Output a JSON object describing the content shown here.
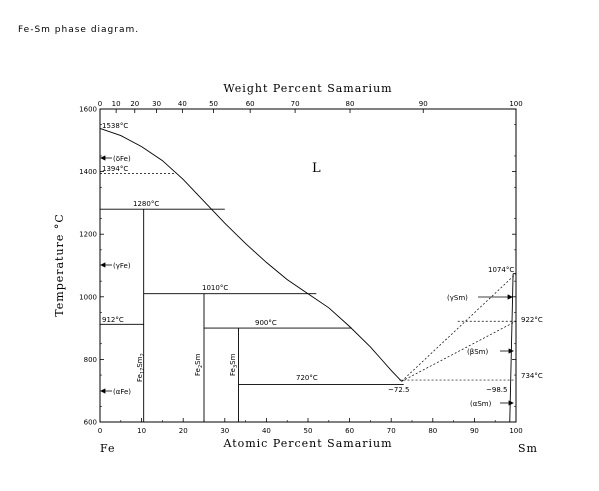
{
  "caption": "Fe-Sm phase diagram.",
  "chart_data": {
    "type": "phase-diagram",
    "x_bottom": {
      "label": "Atomic Percent Samarium",
      "ticks": [
        0,
        10,
        20,
        30,
        40,
        50,
        60,
        70,
        80,
        90,
        100
      ],
      "range": [
        0,
        100
      ]
    },
    "x_top": {
      "label": "Weight Percent Samarium",
      "ticks": [
        0,
        10,
        20,
        30,
        40,
        50,
        60,
        70,
        80,
        90,
        100
      ]
    },
    "y": {
      "label": "Temperature °C",
      "ticks": [
        600,
        800,
        1000,
        1200,
        1400,
        1600
      ],
      "range": [
        600,
        1600
      ]
    },
    "top_ticks_at": [
      0,
      3.88,
      8.36,
      13.6,
      19.8,
      27.3,
      36.1,
      46.9,
      60.1,
      77.7,
      100
    ],
    "element_left": "Fe",
    "element_right": "Sm",
    "phase_L": "L",
    "liquidus": [
      [
        0,
        1538
      ],
      [
        5,
        1515
      ],
      [
        10,
        1480
      ],
      [
        15,
        1435
      ],
      [
        20,
        1375
      ],
      [
        25,
        1305
      ],
      [
        30,
        1235
      ],
      [
        35,
        1170
      ],
      [
        40,
        1110
      ],
      [
        45,
        1055
      ],
      [
        50,
        1010
      ],
      [
        55,
        965
      ],
      [
        60,
        905
      ],
      [
        65,
        840
      ],
      [
        70,
        765
      ],
      [
        72.5,
        730
      ]
    ],
    "horizontals": [
      {
        "x": [
          0,
          30
        ],
        "y": 1280
      },
      {
        "x": [
          10.5,
          52
        ],
        "y": 1010
      },
      {
        "x": [
          25,
          60.5
        ],
        "y": 900
      },
      {
        "x": [
          0,
          10.5
        ],
        "y": 912
      },
      {
        "x": [
          33.3,
          73
        ],
        "y": 720
      }
    ],
    "dashed_horizontals": [
      {
        "x": [
          0,
          18
        ],
        "y": 1394
      },
      {
        "x": [
          72,
          100
        ],
        "y": 734
      },
      {
        "x": [
          86,
          100
        ],
        "y": 922
      }
    ],
    "verticals": [
      {
        "x": 10.5,
        "y": [
          600,
          1280
        ]
      },
      {
        "x": 25,
        "y": [
          600,
          1010
        ]
      },
      {
        "x": 33.3,
        "y": [
          600,
          900
        ]
      }
    ],
    "dashed_sm_liquidus": [
      [
        72.5,
        730
      ],
      [
        100,
        1074
      ]
    ],
    "dashed_sm_solvus": [
      [
        72.5,
        730
      ],
      [
        100,
        922
      ]
    ],
    "labels": {
      "t1538": "1538°C",
      "t1394": "1394°C",
      "t1280": "1280°C",
      "t1010": "1010°C",
      "t912": "912°C",
      "t900": "900°C",
      "t720": "720°C",
      "t1074": "1074°C",
      "t922": "922°C",
      "t734": "734°C",
      "x72_5": "~72.5",
      "x98_5": "~98.5",
      "deltaFe": "(δFe)",
      "gammaFe": "(γFe)",
      "alphaFe": "(αFe)",
      "gammaSm": "(γSm)",
      "betaSm": "(βSm)",
      "alphaSm": "(αSm)",
      "fe17sm2": "Fe17Sm2",
      "fe2sm": "Fe2Sm",
      "fe3sm": "Fe3Sm"
    }
  }
}
